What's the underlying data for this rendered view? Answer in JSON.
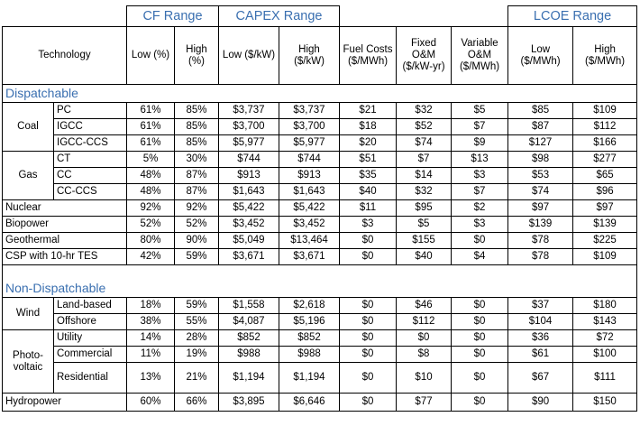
{
  "headers": {
    "group_cf": "CF Range",
    "group_capex": "CAPEX Range",
    "group_lcoe": "LCOE Range",
    "technology": "Technology",
    "cf_low": "Low (%)",
    "cf_high": "High (%)",
    "capex_low": "Low ($/kW)",
    "capex_high": "High ($/kW)",
    "fuel": "Fuel Costs ($/MWh)",
    "fixed_om": "Fixed O&M ($/kW-yr)",
    "var_om": "Variable O&M ($/MWh)",
    "lcoe_low": "Low ($/MWh)",
    "lcoe_high": "High ($/MWh)"
  },
  "sections": {
    "dispatchable": "Dispatchable",
    "non_dispatchable": "Non-Dispatchable"
  },
  "groups": {
    "coal": "Coal",
    "gas": "Gas",
    "wind": "Wind",
    "pv1": "Photo-",
    "pv2": "voltaic"
  },
  "rows": {
    "pc": [
      "PC",
      "61%",
      "85%",
      "$3,737",
      "$3,737",
      "$21",
      "$32",
      "$5",
      "$85",
      "$109"
    ],
    "igcc": [
      "IGCC",
      "61%",
      "85%",
      "$3,700",
      "$3,700",
      "$18",
      "$52",
      "$7",
      "$87",
      "$112"
    ],
    "igcc_ccs": [
      "IGCC-CCS",
      "61%",
      "85%",
      "$5,977",
      "$5,977",
      "$20",
      "$74",
      "$9",
      "$127",
      "$166"
    ],
    "ct": [
      "CT",
      "5%",
      "30%",
      "$744",
      "$744",
      "$51",
      "$7",
      "$13",
      "$98",
      "$277"
    ],
    "cc": [
      "CC",
      "48%",
      "87%",
      "$913",
      "$913",
      "$35",
      "$14",
      "$3",
      "$53",
      "$65"
    ],
    "cc_ccs": [
      "CC-CCS",
      "48%",
      "87%",
      "$1,643",
      "$1,643",
      "$40",
      "$32",
      "$7",
      "$74",
      "$96"
    ],
    "nuclear": [
      "Nuclear",
      "92%",
      "92%",
      "$5,422",
      "$5,422",
      "$11",
      "$95",
      "$2",
      "$97",
      "$97"
    ],
    "biopower": [
      "Biopower",
      "52%",
      "52%",
      "$3,452",
      "$3,452",
      "$3",
      "$5",
      "$3",
      "$139",
      "$139"
    ],
    "geothermal": [
      "Geothermal",
      "80%",
      "90%",
      "$5,049",
      "$13,464",
      "$0",
      "$155",
      "$0",
      "$78",
      "$225"
    ],
    "csp": [
      "CSP with 10-hr TES",
      "42%",
      "59%",
      "$3,671",
      "$3,671",
      "$0",
      "$40",
      "$4",
      "$78",
      "$109"
    ],
    "land": [
      "Land-based",
      "18%",
      "59%",
      "$1,558",
      "$2,618",
      "$0",
      "$46",
      "$0",
      "$37",
      "$180"
    ],
    "offshore": [
      "Offshore",
      "38%",
      "55%",
      "$4,087",
      "$5,196",
      "$0",
      "$112",
      "$0",
      "$104",
      "$143"
    ],
    "utility": [
      "Utility",
      "14%",
      "28%",
      "$852",
      "$852",
      "$0",
      "$0",
      "$0",
      "$36",
      "$72"
    ],
    "commercial": [
      "Commercial",
      "11%",
      "19%",
      "$988",
      "$988",
      "$0",
      "$8",
      "$0",
      "$61",
      "$100"
    ],
    "residential": [
      "Residential",
      "13%",
      "21%",
      "$1,194",
      "$1,194",
      "$0",
      "$10",
      "$0",
      "$67",
      "$111"
    ],
    "hydro": [
      "Hydropower",
      "60%",
      "66%",
      "$3,895",
      "$6,646",
      "$0",
      "$77",
      "$0",
      "$90",
      "$150"
    ]
  }
}
